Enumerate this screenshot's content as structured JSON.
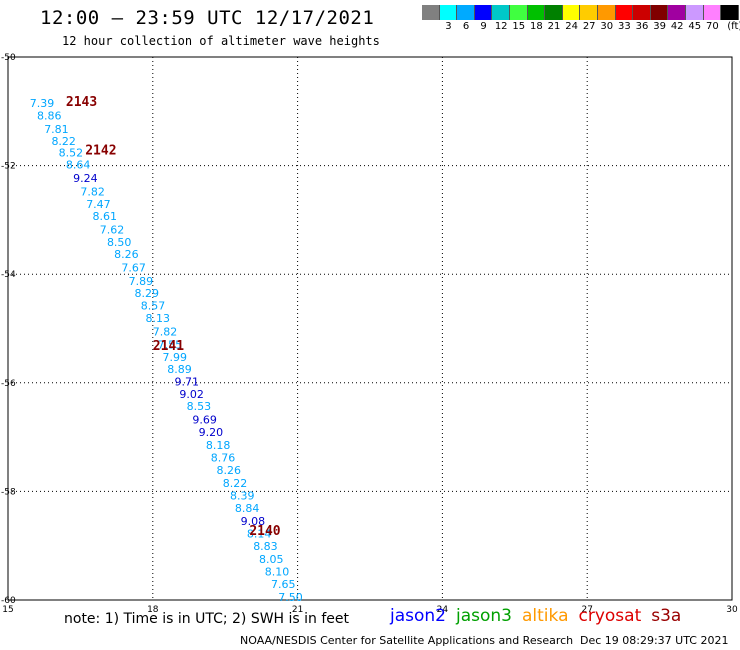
{
  "header": {
    "title": "12:00 – 23:59 UTC 12/17/2021",
    "subtitle": "12 hour collection of altimeter wave heights"
  },
  "color_scale": {
    "unit": "(ft)",
    "swatches": [
      {
        "color": "#808080",
        "label": ""
      },
      {
        "color": "#00ffff",
        "label": "3"
      },
      {
        "color": "#00aaff",
        "label": "6"
      },
      {
        "color": "#0000ff",
        "label": "9"
      },
      {
        "color": "#00c8c8",
        "label": "12"
      },
      {
        "color": "#40ff40",
        "label": "15"
      },
      {
        "color": "#00c000",
        "label": "18"
      },
      {
        "color": "#008000",
        "label": "21"
      },
      {
        "color": "#ffff00",
        "label": "24"
      },
      {
        "color": "#ffcc00",
        "label": "27"
      },
      {
        "color": "#ff9900",
        "label": "30"
      },
      {
        "color": "#ff0000",
        "label": "33"
      },
      {
        "color": "#cc0000",
        "label": "36"
      },
      {
        "color": "#800000",
        "label": "39"
      },
      {
        "color": "#a000a0",
        "label": "42"
      },
      {
        "color": "#cc99ff",
        "label": "45"
      },
      {
        "color": "#ff80ff",
        "label": "70"
      },
      {
        "color": "#000000",
        "label": ""
      }
    ]
  },
  "axes": {
    "x_ticks": [
      "15",
      "18",
      "21",
      "24",
      "27",
      "30"
    ],
    "y_ticks": [
      "-50",
      "-52",
      "-54",
      "-56",
      "-58",
      "-60"
    ],
    "lon_range": [
      15,
      30
    ],
    "lat_range": [
      -50,
      -60
    ]
  },
  "passes": [
    {
      "label": "2143",
      "lon": 16.2,
      "lat": -50.9
    },
    {
      "label": "2142",
      "lon": 16.6,
      "lat": -51.8
    },
    {
      "label": "2141",
      "lon": 18.0,
      "lat": -55.4
    },
    {
      "label": "2140",
      "lon": 20.0,
      "lat": -58.8
    }
  ],
  "wave_heights": [
    {
      "v": "7.39",
      "lon": 15.45,
      "lat": -50.92,
      "c": "#00a6ff"
    },
    {
      "v": "8.86",
      "lon": 15.6,
      "lat": -51.15,
      "c": "#00a6ff"
    },
    {
      "v": "7.81",
      "lon": 15.75,
      "lat": -51.4,
      "c": "#00a6ff"
    },
    {
      "v": "8.22",
      "lon": 15.9,
      "lat": -51.62,
      "c": "#00a6ff"
    },
    {
      "v": "8.52",
      "lon": 16.05,
      "lat": -51.83,
      "c": "#00a6ff"
    },
    {
      "v": "8.64",
      "lon": 16.2,
      "lat": -52.05,
      "c": "#00a6ff"
    },
    {
      "v": "9.24",
      "lon": 16.35,
      "lat": -52.3,
      "c": "#0000cc"
    },
    {
      "v": "7.82",
      "lon": 16.5,
      "lat": -52.55,
      "c": "#00a6ff"
    },
    {
      "v": "7.47",
      "lon": 16.62,
      "lat": -52.78,
      "c": "#00a6ff"
    },
    {
      "v": "8.61",
      "lon": 16.75,
      "lat": -53.0,
      "c": "#00a6ff"
    },
    {
      "v": "7.62",
      "lon": 16.9,
      "lat": -53.25,
      "c": "#00a6ff"
    },
    {
      "v": "8.50",
      "lon": 17.05,
      "lat": -53.48,
      "c": "#00a6ff"
    },
    {
      "v": "8.26",
      "lon": 17.2,
      "lat": -53.7,
      "c": "#00a6ff"
    },
    {
      "v": "7.67",
      "lon": 17.35,
      "lat": -53.95,
      "c": "#00a6ff"
    },
    {
      "v": "7.89",
      "lon": 17.5,
      "lat": -54.2,
      "c": "#00a6ff"
    },
    {
      "v": "8.29",
      "lon": 17.62,
      "lat": -54.42,
      "c": "#00a6ff"
    },
    {
      "v": "8.57",
      "lon": 17.75,
      "lat": -54.65,
      "c": "#00a6ff"
    },
    {
      "v": "8.13",
      "lon": 17.85,
      "lat": -54.88,
      "c": "#00a6ff"
    },
    {
      "v": "7.82",
      "lon": 18.0,
      "lat": -55.13,
      "c": "#00a6ff"
    },
    {
      "v": "7.55",
      "lon": 18.1,
      "lat": -55.37,
      "c": "#00a6ff"
    },
    {
      "v": "7.99",
      "lon": 18.2,
      "lat": -55.6,
      "c": "#00a6ff"
    },
    {
      "v": "8.89",
      "lon": 18.3,
      "lat": -55.82,
      "c": "#00a6ff"
    },
    {
      "v": "9.71",
      "lon": 18.45,
      "lat": -56.05,
      "c": "#0000cc"
    },
    {
      "v": "9.02",
      "lon": 18.55,
      "lat": -56.28,
      "c": "#0000cc"
    },
    {
      "v": "8.53",
      "lon": 18.7,
      "lat": -56.5,
      "c": "#00a6ff"
    },
    {
      "v": "9.69",
      "lon": 18.82,
      "lat": -56.75,
      "c": "#0000cc"
    },
    {
      "v": "9.20",
      "lon": 18.95,
      "lat": -56.98,
      "c": "#0000cc"
    },
    {
      "v": "8.18",
      "lon": 19.1,
      "lat": -57.22,
      "c": "#00a6ff"
    },
    {
      "v": "8.76",
      "lon": 19.2,
      "lat": -57.45,
      "c": "#00a6ff"
    },
    {
      "v": "8.26",
      "lon": 19.32,
      "lat": -57.68,
      "c": "#00a6ff"
    },
    {
      "v": "8.22",
      "lon": 19.45,
      "lat": -57.92,
      "c": "#00a6ff"
    },
    {
      "v": "8.39",
      "lon": 19.6,
      "lat": -58.15,
      "c": "#00a6ff"
    },
    {
      "v": "8.84",
      "lon": 19.7,
      "lat": -58.38,
      "c": "#00a6ff"
    },
    {
      "v": "9.08",
      "lon": 19.82,
      "lat": -58.62,
      "c": "#0000cc"
    },
    {
      "v": "8.14",
      "lon": 19.95,
      "lat": -58.85,
      "c": "#00a6ff"
    },
    {
      "v": "8.83",
      "lon": 20.08,
      "lat": -59.08,
      "c": "#00a6ff"
    },
    {
      "v": "8.05",
      "lon": 20.2,
      "lat": -59.32,
      "c": "#00a6ff"
    },
    {
      "v": "8.10",
      "lon": 20.32,
      "lat": -59.55,
      "c": "#00a6ff"
    },
    {
      "v": "7.65",
      "lon": 20.45,
      "lat": -59.78,
      "c": "#00a6ff"
    },
    {
      "v": "7.50",
      "lon": 20.6,
      "lat": -60.02,
      "c": "#00a6ff"
    }
  ],
  "legend": {
    "note": "note: 1) Time is in UTC; 2) SWH is in feet",
    "satellites": [
      {
        "name": "jason2",
        "color": "#0000ff"
      },
      {
        "name": "jason3",
        "color": "#00a000"
      },
      {
        "name": "altika",
        "color": "#ff9900"
      },
      {
        "name": "cryosat",
        "color": "#dd0000"
      },
      {
        "name": "s3a",
        "color": "#990000"
      }
    ]
  },
  "footer": {
    "credit": "NOAA/NESDIS Center for Satellite Applications and Research",
    "timestamp": "Dec 19 08:29:37 UTC 2021"
  }
}
